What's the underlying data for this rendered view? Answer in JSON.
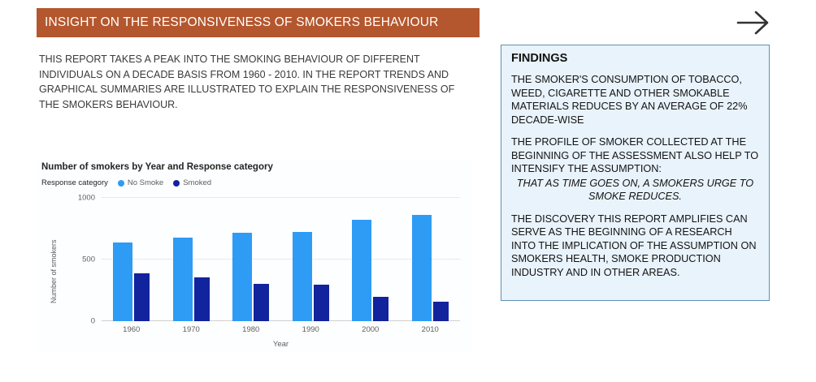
{
  "colors": {
    "banner_bg": "#B4572E",
    "no_smoke": "#2E9BF5",
    "smoked": "#12239E",
    "findings_bg": "#E9F3FB",
    "findings_border": "#5F8FB4",
    "arrow": "#333333"
  },
  "header": {
    "title": "INSIGHT ON THE RESPONSIVENESS OF SMOKERS BEHAVIOUR"
  },
  "intro": {
    "text": "THIS REPORT TAKES A PEAK INTO THE SMOKING BEHAVIOUR OF DIFFERENT INDIVIDUALS ON A DECADE BASIS FROM 1960 - 2010. IN THE REPORT TRENDS AND GRAPHICAL SUMMARIES ARE ILLUSTRATED TO EXPLAIN THE RESPONSIVENESS OF THE SMOKERS BEHAVIOUR."
  },
  "chart_data": {
    "type": "bar",
    "title": "Number of smokers by Year and Response category",
    "legend_title": "Response category",
    "categories": [
      "1960",
      "1970",
      "1980",
      "1990",
      "2000",
      "2010"
    ],
    "series": [
      {
        "name": "No Smoke",
        "color": "#2E9BF5",
        "values": [
          640,
          675,
          715,
          725,
          820,
          860
        ]
      },
      {
        "name": "Smoked",
        "color": "#12239E",
        "values": [
          385,
          355,
          305,
          295,
          195,
          155
        ]
      }
    ],
    "xlabel": "Year",
    "ylabel": "Number of smokers",
    "ylim": [
      0,
      1000
    ],
    "yticks": [
      0,
      500,
      1000
    ],
    "legend_position": "top",
    "grid": true
  },
  "findings": {
    "title": "FINDINGS",
    "p1": "THE SMOKER'S CONSUMPTION OF TOBACCO, WEED, CIGARETTE  AND OTHER SMOKABLE MATERIALS REDUCES BY AN AVERAGE OF 22% DECADE-WISE",
    "p2": "THE PROFILE OF SMOKER COLLECTED AT THE BEGINNING OF THE ASSESSMENT ALSO HELP TO INTENSIFY THE ASSUMPTION:",
    "p2_italic": "THAT AS TIME GOES ON, A SMOKERS URGE TO SMOKE REDUCES.",
    "p3": "THE DISCOVERY THIS REPORT AMPLIFIES CAN SERVE AS THE BEGINNING OF A RESEARCH INTO THE IMPLICATION OF THE ASSUMPTION ON SMOKERS HEALTH, SMOKE PRODUCTION INDUSTRY AND IN OTHER AREAS."
  }
}
